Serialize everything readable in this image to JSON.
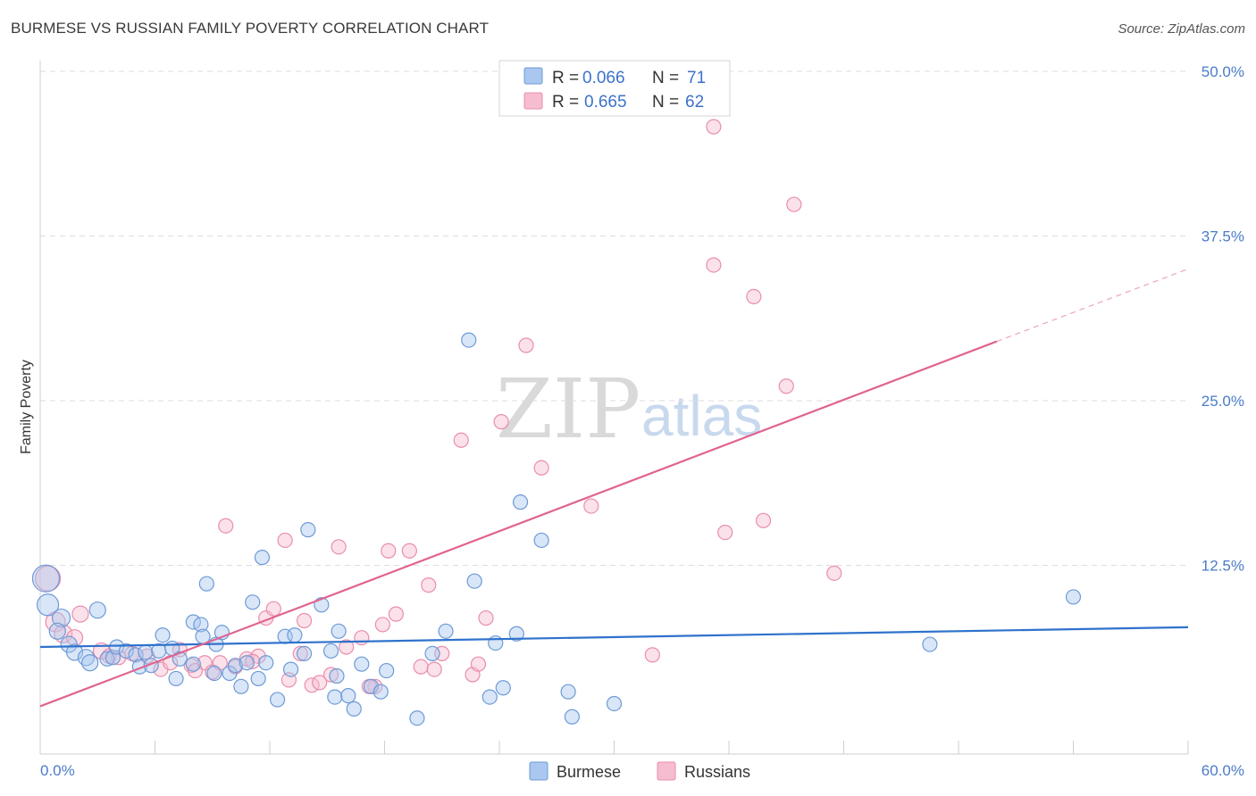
{
  "title": "BURMESE VS RUSSIAN FAMILY POVERTY CORRELATION CHART",
  "source": "Source: ZipAtlas.com",
  "watermark": {
    "zip": "ZIP",
    "atlas": "atlas"
  },
  "colors": {
    "burmese_fill": "#a9c7ef",
    "burmese_stroke": "#6e9ad6",
    "burmese_line": "#2f72cc",
    "russians_fill": "#f6bcd0",
    "russians_stroke": "#e98eac",
    "russians_line": "#e0648f",
    "tick_text": "#4a7cc9",
    "grid": "#dddddd"
  },
  "legend": {
    "rows": [
      {
        "r_label": "R = ",
        "r_value": "0.066",
        "n_label": "N = ",
        "n_value": "71"
      },
      {
        "r_label": "R = ",
        "r_value": "0.665",
        "n_label": "N = ",
        "n_value": "62"
      }
    ]
  },
  "chart_data": {
    "type": "scatter",
    "title": "BURMESE VS RUSSIAN FAMILY POVERTY CORRELATION CHART",
    "xlabel": "",
    "ylabel": "Family Poverty",
    "xlim": [
      0,
      60
    ],
    "ylim": [
      0,
      50
    ],
    "x_tick_labels": [
      "0.0%",
      "60.0%"
    ],
    "y_ticks": [
      12.5,
      25.0,
      37.5,
      50.0
    ],
    "y_tick_labels": [
      "12.5%",
      "25.0%",
      "37.5%",
      "50.0%"
    ],
    "grid": "horizontal dashed",
    "legend_position": "top-center",
    "series": [
      {
        "name": "Burmese",
        "R": 0.066,
        "N": 71,
        "trend": {
          "x": [
            0,
            60
          ],
          "y": [
            6.3,
            7.8
          ]
        },
        "points": [
          [
            0.3,
            11.5,
            15
          ],
          [
            0.4,
            9.5,
            12
          ],
          [
            1.1,
            8.5,
            10
          ],
          [
            0.9,
            7.5,
            9
          ],
          [
            1.5,
            6.5,
            9
          ],
          [
            1.8,
            5.9,
            9
          ],
          [
            2.4,
            5.5,
            9
          ],
          [
            2.6,
            5.1,
            9
          ],
          [
            3.0,
            9.1,
            9
          ],
          [
            3.5,
            5.4,
            8
          ],
          [
            3.8,
            5.5,
            8
          ],
          [
            4.0,
            6.3,
            8
          ],
          [
            4.5,
            6.0,
            8
          ],
          [
            5.0,
            5.7,
            8
          ],
          [
            5.2,
            4.8,
            8
          ],
          [
            5.5,
            5.9,
            8
          ],
          [
            5.8,
            4.9,
            8
          ],
          [
            6.2,
            6.0,
            8
          ],
          [
            6.4,
            7.2,
            8
          ],
          [
            6.9,
            6.2,
            8
          ],
          [
            7.1,
            3.9,
            8
          ],
          [
            7.3,
            5.4,
            8
          ],
          [
            8.0,
            8.2,
            8
          ],
          [
            8.4,
            8.0,
            8
          ],
          [
            8.5,
            7.1,
            8
          ],
          [
            8.7,
            11.1,
            8
          ],
          [
            9.1,
            4.3,
            8
          ],
          [
            9.2,
            6.5,
            8
          ],
          [
            9.5,
            7.4,
            8
          ],
          [
            9.9,
            4.3,
            8
          ],
          [
            10.2,
            4.9,
            8
          ],
          [
            10.5,
            3.3,
            8
          ],
          [
            10.8,
            5.1,
            8
          ],
          [
            11.1,
            9.7,
            8
          ],
          [
            11.4,
            3.9,
            8
          ],
          [
            11.6,
            13.1,
            8
          ],
          [
            11.8,
            5.1,
            8
          ],
          [
            12.4,
            2.3,
            8
          ],
          [
            12.8,
            7.1,
            8
          ],
          [
            13.1,
            4.6,
            8
          ],
          [
            13.3,
            7.2,
            8
          ],
          [
            13.8,
            5.8,
            8
          ],
          [
            14.0,
            15.2,
            8
          ],
          [
            14.7,
            9.5,
            8
          ],
          [
            15.2,
            6.0,
            8
          ],
          [
            15.4,
            2.5,
            8
          ],
          [
            15.6,
            7.5,
            8
          ],
          [
            16.1,
            2.6,
            8
          ],
          [
            16.4,
            1.6,
            8
          ],
          [
            16.8,
            5.0,
            8
          ],
          [
            17.3,
            3.3,
            8
          ],
          [
            17.8,
            2.9,
            8
          ],
          [
            18.1,
            4.5,
            8
          ],
          [
            19.7,
            0.9,
            8
          ],
          [
            20.5,
            5.8,
            8
          ],
          [
            21.2,
            7.5,
            8
          ],
          [
            22.4,
            29.6,
            8
          ],
          [
            22.7,
            11.3,
            8
          ],
          [
            23.5,
            2.5,
            8
          ],
          [
            23.8,
            6.6,
            8
          ],
          [
            24.2,
            3.2,
            8
          ],
          [
            24.9,
            7.3,
            8
          ],
          [
            25.1,
            17.3,
            8
          ],
          [
            26.2,
            14.4,
            8
          ],
          [
            27.6,
            2.9,
            8
          ],
          [
            27.8,
            1.0,
            8
          ],
          [
            30.0,
            2.0,
            8
          ],
          [
            46.5,
            6.5,
            8
          ],
          [
            54.0,
            10.1,
            8
          ],
          [
            8.0,
            5.0,
            8
          ],
          [
            15.5,
            4.1,
            8
          ]
        ]
      },
      {
        "name": "Russians",
        "R": 0.665,
        "N": 62,
        "trend": {
          "x": [
            0,
            50
          ],
          "y": [
            1.8,
            29.5
          ]
        },
        "trend_dashed": {
          "x": [
            50,
            60
          ],
          "y": [
            29.5,
            35.0
          ]
        },
        "points": [
          [
            0.4,
            11.5,
            14
          ],
          [
            0.8,
            8.2,
            11
          ],
          [
            1.2,
            7.3,
            10
          ],
          [
            1.8,
            7.0,
            9
          ],
          [
            2.1,
            8.8,
            9
          ],
          [
            3.2,
            6.0,
            9
          ],
          [
            3.6,
            5.6,
            8
          ],
          [
            4.1,
            5.5,
            8
          ],
          [
            4.8,
            5.8,
            8
          ],
          [
            5.6,
            5.6,
            8
          ],
          [
            6.3,
            4.6,
            8
          ],
          [
            6.8,
            5.1,
            8
          ],
          [
            7.3,
            6.1,
            8
          ],
          [
            7.9,
            4.9,
            8
          ],
          [
            8.6,
            5.1,
            8
          ],
          [
            9.0,
            4.4,
            8
          ],
          [
            9.4,
            5.1,
            8
          ],
          [
            9.7,
            15.5,
            8
          ],
          [
            10.2,
            4.8,
            8
          ],
          [
            10.8,
            5.4,
            8
          ],
          [
            11.4,
            5.6,
            8
          ],
          [
            11.8,
            8.5,
            8
          ],
          [
            12.2,
            9.2,
            8
          ],
          [
            12.8,
            14.4,
            8
          ],
          [
            13.0,
            3.8,
            8
          ],
          [
            13.8,
            8.3,
            8
          ],
          [
            14.2,
            3.4,
            8
          ],
          [
            14.6,
            3.6,
            8
          ],
          [
            15.2,
            4.2,
            8
          ],
          [
            15.6,
            13.9,
            8
          ],
          [
            16.0,
            6.3,
            8
          ],
          [
            16.8,
            7.0,
            8
          ],
          [
            17.5,
            3.3,
            8
          ],
          [
            17.9,
            8.0,
            8
          ],
          [
            18.2,
            13.6,
            8
          ],
          [
            18.6,
            8.8,
            8
          ],
          [
            19.3,
            13.6,
            8
          ],
          [
            19.9,
            4.8,
            8
          ],
          [
            20.3,
            11.0,
            8
          ],
          [
            20.6,
            4.6,
            8
          ],
          [
            21.0,
            5.8,
            8
          ],
          [
            22.0,
            22.0,
            8
          ],
          [
            22.6,
            4.2,
            8
          ],
          [
            22.9,
            5.0,
            8
          ],
          [
            23.3,
            8.5,
            8
          ],
          [
            24.1,
            23.4,
            8
          ],
          [
            25.4,
            29.2,
            8
          ],
          [
            26.2,
            19.9,
            8
          ],
          [
            28.8,
            17.0,
            8
          ],
          [
            32.0,
            5.7,
            8
          ],
          [
            35.2,
            45.8,
            8
          ],
          [
            35.2,
            35.3,
            8
          ],
          [
            35.8,
            15.0,
            8
          ],
          [
            37.3,
            32.9,
            8
          ],
          [
            37.8,
            15.9,
            8
          ],
          [
            39.0,
            26.1,
            8
          ],
          [
            39.4,
            39.9,
            8
          ],
          [
            41.5,
            11.9,
            8
          ],
          [
            17.2,
            3.3,
            8
          ],
          [
            11.1,
            5.2,
            8
          ],
          [
            13.6,
            5.8,
            8
          ],
          [
            8.1,
            4.5,
            8
          ]
        ]
      }
    ]
  },
  "bottom_legend": [
    {
      "label": "Burmese"
    },
    {
      "label": "Russians"
    }
  ]
}
